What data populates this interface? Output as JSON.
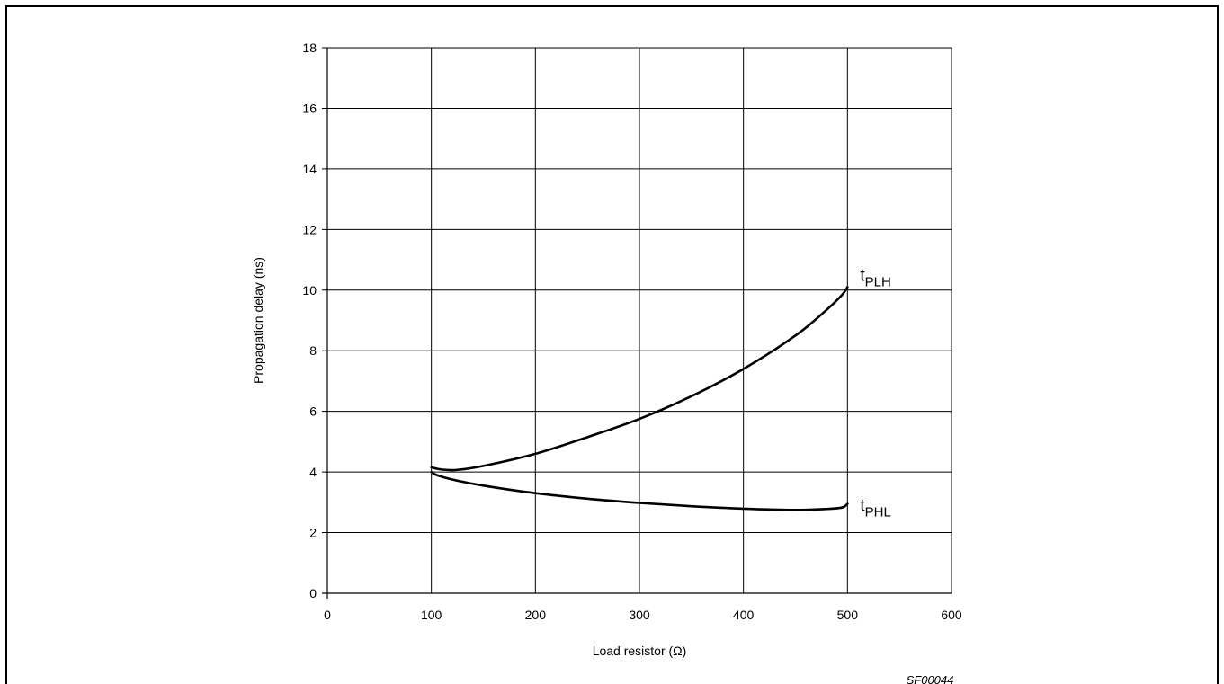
{
  "chart_data": {
    "type": "line",
    "title": "",
    "xlabel": "Load resistor (Ω)",
    "ylabel": "Propagation delay (ns)",
    "xlim": [
      0,
      600
    ],
    "ylim": [
      0,
      18
    ],
    "x_ticks": [
      0,
      100,
      200,
      300,
      400,
      500,
      600
    ],
    "y_ticks": [
      0,
      2,
      4,
      6,
      8,
      10,
      12,
      14,
      16,
      18
    ],
    "grid": true,
    "legend": "none (series labeled inline at curve ends)",
    "series": [
      {
        "name": "tPLH",
        "label_main": "t",
        "label_sub": "PLH",
        "points": [
          [
            100,
            4.15
          ],
          [
            110,
            4.08
          ],
          [
            125,
            4.07
          ],
          [
            150,
            4.2
          ],
          [
            200,
            4.6
          ],
          [
            250,
            5.15
          ],
          [
            300,
            5.75
          ],
          [
            350,
            6.5
          ],
          [
            400,
            7.4
          ],
          [
            450,
            8.5
          ],
          [
            480,
            9.35
          ],
          [
            495,
            9.85
          ],
          [
            500,
            10.1
          ]
        ]
      },
      {
        "name": "tPHL",
        "label_main": "t",
        "label_sub": "PHL",
        "points": [
          [
            100,
            4.0
          ],
          [
            105,
            3.9
          ],
          [
            120,
            3.75
          ],
          [
            150,
            3.55
          ],
          [
            200,
            3.3
          ],
          [
            250,
            3.12
          ],
          [
            300,
            2.98
          ],
          [
            350,
            2.87
          ],
          [
            400,
            2.79
          ],
          [
            450,
            2.75
          ],
          [
            480,
            2.78
          ],
          [
            495,
            2.83
          ],
          [
            500,
            2.95
          ]
        ]
      }
    ],
    "annotations": [
      "SF00044"
    ]
  }
}
